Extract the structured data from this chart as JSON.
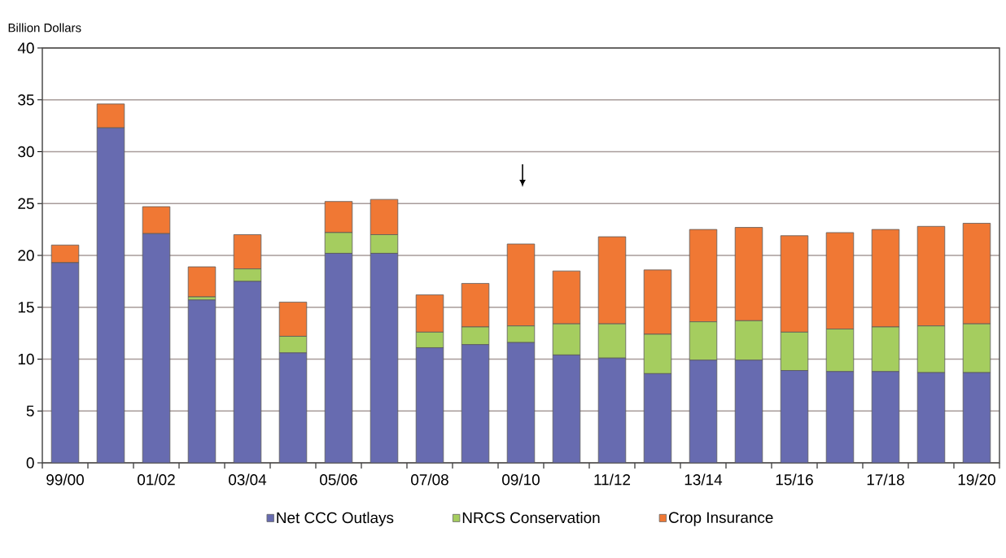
{
  "chart_data": {
    "type": "bar",
    "stacked": true,
    "ylabel": "Billion Dollars",
    "categories": [
      "99/00",
      null,
      "01/02",
      null,
      "03/04",
      null,
      "05/06",
      null,
      "07/08",
      null,
      "09/10",
      null,
      "11/12",
      null,
      "13/14",
      null,
      "15/16",
      null,
      "17/18",
      null,
      "19/20"
    ],
    "series": [
      {
        "name": "Net CCC Outlays",
        "color": "#676bb0",
        "values": [
          19.3,
          32.3,
          22.1,
          15.7,
          17.5,
          10.6,
          20.2,
          20.2,
          11.1,
          11.4,
          11.6,
          10.4,
          10.1,
          8.6,
          9.9,
          9.9,
          8.9,
          8.8,
          8.8,
          8.7,
          8.7
        ]
      },
      {
        "name": "NRCS Conservation",
        "color": "#a5cd5f",
        "values": [
          0,
          0,
          0,
          0.3,
          1.2,
          1.6,
          2.0,
          1.8,
          1.5,
          1.7,
          1.6,
          3.0,
          3.3,
          3.8,
          3.7,
          3.8,
          3.7,
          4.1,
          4.3,
          4.5,
          4.7
        ]
      },
      {
        "name": "Crop Insurance",
        "color": "#f07834",
        "values": [
          1.7,
          2.3,
          2.6,
          2.9,
          3.3,
          3.3,
          3.0,
          3.4,
          3.6,
          4.2,
          7.9,
          5.1,
          8.4,
          6.2,
          8.9,
          9.0,
          9.3,
          9.3,
          9.4,
          9.6,
          9.7
        ]
      }
    ],
    "ylim": [
      0,
      40
    ],
    "yticks": [
      0,
      5,
      10,
      15,
      20,
      25,
      30,
      35,
      40
    ],
    "grid": "y",
    "legend": "bottom"
  }
}
